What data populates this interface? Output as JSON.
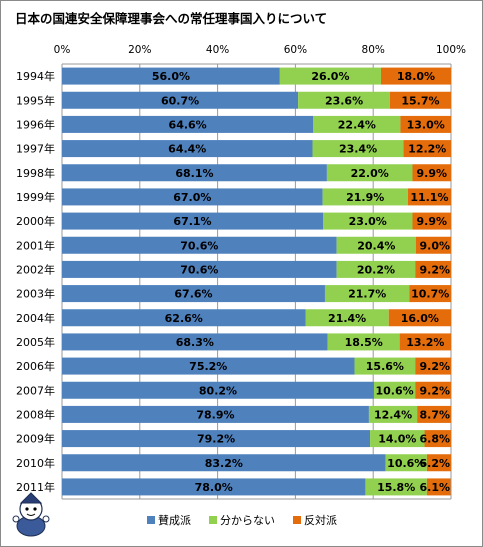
{
  "chart_data": {
    "type": "bar",
    "orientation": "horizontal",
    "stacked": true,
    "percent": true,
    "title": "日本の国連安全保障理事会への常任理事国入りについて",
    "categories": [
      "1994年",
      "1995年",
      "1996年",
      "1997年",
      "1998年",
      "1999年",
      "2000年",
      "2001年",
      "2002年",
      "2003年",
      "2004年",
      "2005年",
      "2006年",
      "2007年",
      "2008年",
      "2009年",
      "2010年",
      "2011年"
    ],
    "series": [
      {
        "name": "賛成派",
        "color": "#4f81bd",
        "values": [
          56.0,
          60.7,
          64.6,
          64.4,
          68.1,
          67.0,
          67.1,
          70.6,
          70.6,
          67.6,
          62.6,
          68.3,
          75.2,
          80.2,
          78.9,
          79.2,
          83.2,
          78.0
        ]
      },
      {
        "name": "分からない",
        "color": "#92d050",
        "values": [
          26.0,
          23.6,
          22.4,
          23.4,
          22.0,
          21.9,
          23.0,
          20.4,
          20.2,
          21.7,
          21.4,
          18.5,
          15.6,
          10.6,
          12.4,
          14.0,
          10.6,
          15.8
        ]
      },
      {
        "name": "反対派",
        "color": "#e46c0a",
        "values": [
          18.0,
          15.7,
          13.0,
          12.2,
          9.9,
          11.1,
          9.9,
          9.0,
          9.2,
          10.7,
          16.0,
          13.2,
          9.2,
          9.2,
          8.7,
          6.8,
          6.2,
          6.1
        ]
      }
    ],
    "x_ticks": [
      "0%",
      "20%",
      "40%",
      "60%",
      "80%",
      "100%"
    ],
    "xlim": [
      0,
      100
    ],
    "grid": true,
    "legend_position": "bottom"
  }
}
